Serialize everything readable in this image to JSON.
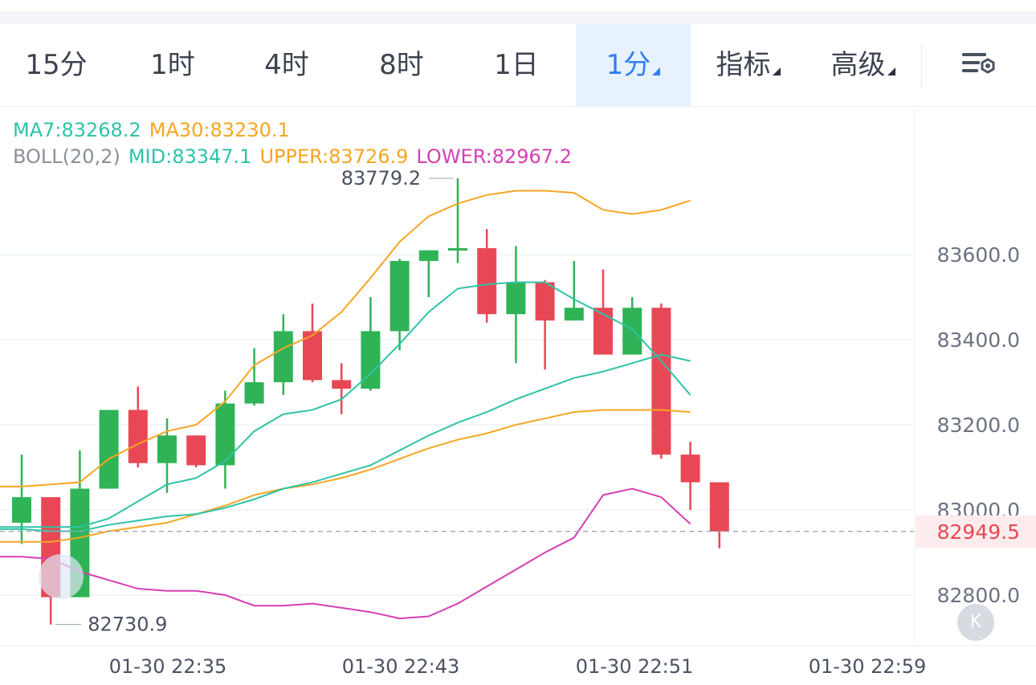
{
  "toolbar": {
    "tabs": [
      {
        "label": "15分"
      },
      {
        "label": "1时"
      },
      {
        "label": "4时"
      },
      {
        "label": "8时"
      },
      {
        "label": "1日"
      },
      {
        "label": "1分"
      },
      {
        "label": "指标"
      },
      {
        "label": "高级"
      }
    ],
    "active_tab": "1分",
    "settings_icon": "chart-settings-icon"
  },
  "indicators": {
    "ma7": "MA7:83268.2",
    "ma30": "MA30:83230.1",
    "boll": "BOLL(20,2)",
    "mid": "MID:83347.1",
    "upper": "UPPER:83726.9",
    "lower": "LOWER:82967.2"
  },
  "annotations": {
    "high": "83779.2",
    "low": "82730.9",
    "last_price": "82949.5"
  },
  "colors": {
    "up": "#2fb356",
    "down": "#e84855",
    "ma7": "#2ec3a7",
    "ma30": "#f5a623",
    "boll_mid": "#2ec3a7",
    "boll_upper": "#f5a623",
    "boll_lower": "#d63fb4",
    "active_tab": "#2f7ff2"
  },
  "chart_data": {
    "type": "candlestick",
    "y_axis": {
      "ticks": [
        83600.0,
        83400.0,
        83200.0,
        83000.0,
        82800.0
      ],
      "tick_labels": [
        "83600.0",
        "83400.0",
        "83200.0",
        "83000.0",
        "82800.0"
      ],
      "ylim": [
        82680,
        83920
      ]
    },
    "x_axis": {
      "tick_labels": [
        "01-30 22:35",
        "01-30 22:43",
        "01-30 22:51",
        "01-30 22:59"
      ]
    },
    "candles": [
      {
        "o": 82970,
        "h": 83130,
        "l": 82920,
        "c": 83030
      },
      {
        "o": 83030,
        "h": 83030,
        "l": 82730.9,
        "c": 82795
      },
      {
        "o": 82795,
        "h": 83140,
        "l": 82795,
        "c": 83050
      },
      {
        "o": 83050,
        "h": 83235,
        "l": 83050,
        "c": 83235
      },
      {
        "o": 83235,
        "h": 83290,
        "l": 83100,
        "c": 83110
      },
      {
        "o": 83110,
        "h": 83215,
        "l": 83040,
        "c": 83175
      },
      {
        "o": 83175,
        "h": 83175,
        "l": 83100,
        "c": 83105
      },
      {
        "o": 83105,
        "h": 83280,
        "l": 83050,
        "c": 83250
      },
      {
        "o": 83250,
        "h": 83380,
        "l": 83245,
        "c": 83300
      },
      {
        "o": 83300,
        "h": 83460,
        "l": 83270,
        "c": 83420
      },
      {
        "o": 83420,
        "h": 83485,
        "l": 83300,
        "c": 83305
      },
      {
        "o": 83305,
        "h": 83345,
        "l": 83225,
        "c": 83285
      },
      {
        "o": 83285,
        "h": 83500,
        "l": 83280,
        "c": 83420
      },
      {
        "o": 83420,
        "h": 83590,
        "l": 83375,
        "c": 83585
      },
      {
        "o": 83585,
        "h": 83610,
        "l": 83500,
        "c": 83610
      },
      {
        "o": 83610,
        "h": 83779.2,
        "l": 83580,
        "c": 83615
      },
      {
        "o": 83615,
        "h": 83660,
        "l": 83440,
        "c": 83460
      },
      {
        "o": 83460,
        "h": 83620,
        "l": 83345,
        "c": 83535
      },
      {
        "o": 83535,
        "h": 83540,
        "l": 83330,
        "c": 83445
      },
      {
        "o": 83445,
        "h": 83585,
        "l": 83445,
        "c": 83475
      },
      {
        "o": 83475,
        "h": 83565,
        "l": 83365,
        "c": 83365
      },
      {
        "o": 83365,
        "h": 83500,
        "l": 83365,
        "c": 83475
      },
      {
        "o": 83475,
        "h": 83485,
        "l": 83120,
        "c": 83130
      },
      {
        "o": 83130,
        "h": 83160,
        "l": 83000,
        "c": 83065
      },
      {
        "o": 83065,
        "h": 83065,
        "l": 82910,
        "c": 82949.5
      }
    ],
    "series": [
      {
        "name": "MA7",
        "values": [
          82960,
          82960,
          82960,
          82980,
          83020,
          83060,
          83075,
          83115,
          83185,
          83225,
          83235,
          83260,
          83320,
          83390,
          83465,
          83520,
          83530,
          83535,
          83535,
          83495,
          83460,
          83425,
          83350,
          83270
        ]
      },
      {
        "name": "MA30",
        "values": [
          82925,
          82925,
          82935,
          82950,
          82960,
          82970,
          82990,
          83010,
          83035,
          83050,
          83060,
          83075,
          83095,
          83120,
          83145,
          83165,
          83180,
          83200,
          83215,
          83230,
          83235,
          83235,
          83235,
          83230
        ]
      },
      {
        "name": "MID",
        "values": [
          82955,
          82950,
          82950,
          82965,
          82975,
          82985,
          82990,
          83005,
          83025,
          83050,
          83065,
          83085,
          83105,
          83140,
          83175,
          83205,
          83230,
          83260,
          83285,
          83310,
          83325,
          83345,
          83365,
          83350
        ]
      },
      {
        "name": "UPPER",
        "values": [
          83055,
          83060,
          83065,
          83120,
          83155,
          83185,
          83200,
          83255,
          83340,
          83380,
          83410,
          83465,
          83545,
          83630,
          83690,
          83720,
          83740,
          83750,
          83750,
          83745,
          83705,
          83695,
          83705,
          83727
        ]
      },
      {
        "name": "LOWER",
        "values": [
          82890,
          82885,
          82855,
          82835,
          82815,
          82810,
          82810,
          82800,
          82775,
          82775,
          82780,
          82770,
          82760,
          82745,
          82750,
          82780,
          82820,
          82860,
          82900,
          82935,
          83035,
          83050,
          83030,
          82967
        ]
      }
    ],
    "last_price": 82949.5,
    "high_label": 83779.2,
    "low_label": 82730.9
  }
}
